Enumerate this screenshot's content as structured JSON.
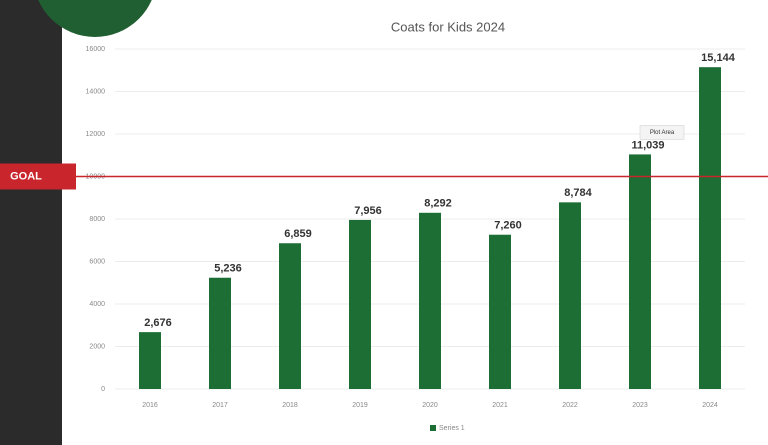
{
  "chart_data": {
    "type": "bar",
    "title": "Coats for Kids 2024",
    "categories": [
      "2016",
      "2017",
      "2018",
      "2019",
      "2020",
      "2021",
      "2022",
      "2023",
      "2024"
    ],
    "series": [
      {
        "name": "Series 1",
        "color": "#1d6e35",
        "values": [
          2676,
          5236,
          6859,
          7956,
          8292,
          7260,
          8784,
          11039,
          15144
        ],
        "value_labels": [
          "2,676",
          "5,236",
          "6,859",
          "7,956",
          "8,292",
          "7,260",
          "8,784",
          "11,039",
          "15,144"
        ]
      }
    ],
    "ylim": [
      0,
      16000
    ],
    "yticks": [
      0,
      2000,
      4000,
      6000,
      8000,
      10000,
      12000,
      14000,
      16000
    ],
    "grid": true,
    "legend": "bottom",
    "goal": {
      "value": 10000,
      "label": "GOAL",
      "color": "#c8262c"
    },
    "annotation": "Plot Area"
  }
}
